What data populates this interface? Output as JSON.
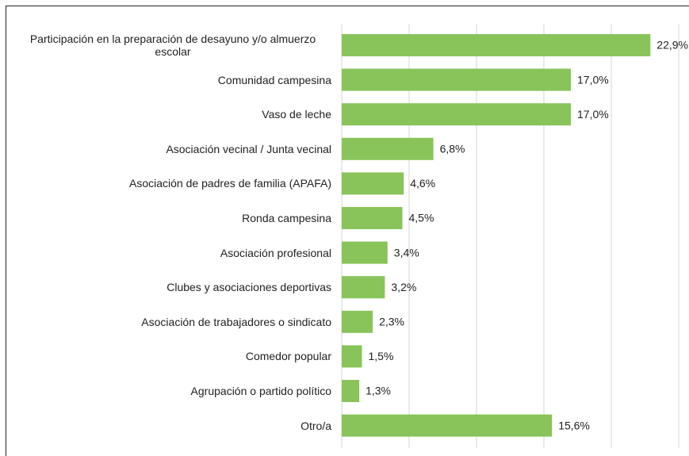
{
  "chart_data": {
    "type": "bar",
    "orientation": "horizontal",
    "categories": [
      "Participación en la preparación de desayuno y/o almuerzo escolar",
      "Comunidad campesina",
      "Vaso de leche",
      "Asociación vecinal / Junta vecinal",
      "Asociación de padres de familia (APAFA)",
      "Ronda campesina",
      "Asociación profesional",
      "Clubes y asociaciones deportivas",
      "Asociación de trabajadores o sindicato",
      "Comedor popular",
      "Agrupación o partido político",
      "Otro/a"
    ],
    "values": [
      22.9,
      17.0,
      17.0,
      6.8,
      4.6,
      4.5,
      3.4,
      3.2,
      2.3,
      1.5,
      1.3,
      15.6
    ],
    "value_labels": [
      "22,9%",
      "17,0%",
      "17,0%",
      "6,8%",
      "4,6%",
      "4,5%",
      "3,4%",
      "3,2%",
      "2,3%",
      "1,5%",
      "1,3%",
      "15,6%"
    ],
    "color": "#88c45a",
    "xlim": [
      0,
      25
    ],
    "xticks": [
      0,
      5,
      10,
      15,
      20,
      25
    ],
    "grid": true
  }
}
